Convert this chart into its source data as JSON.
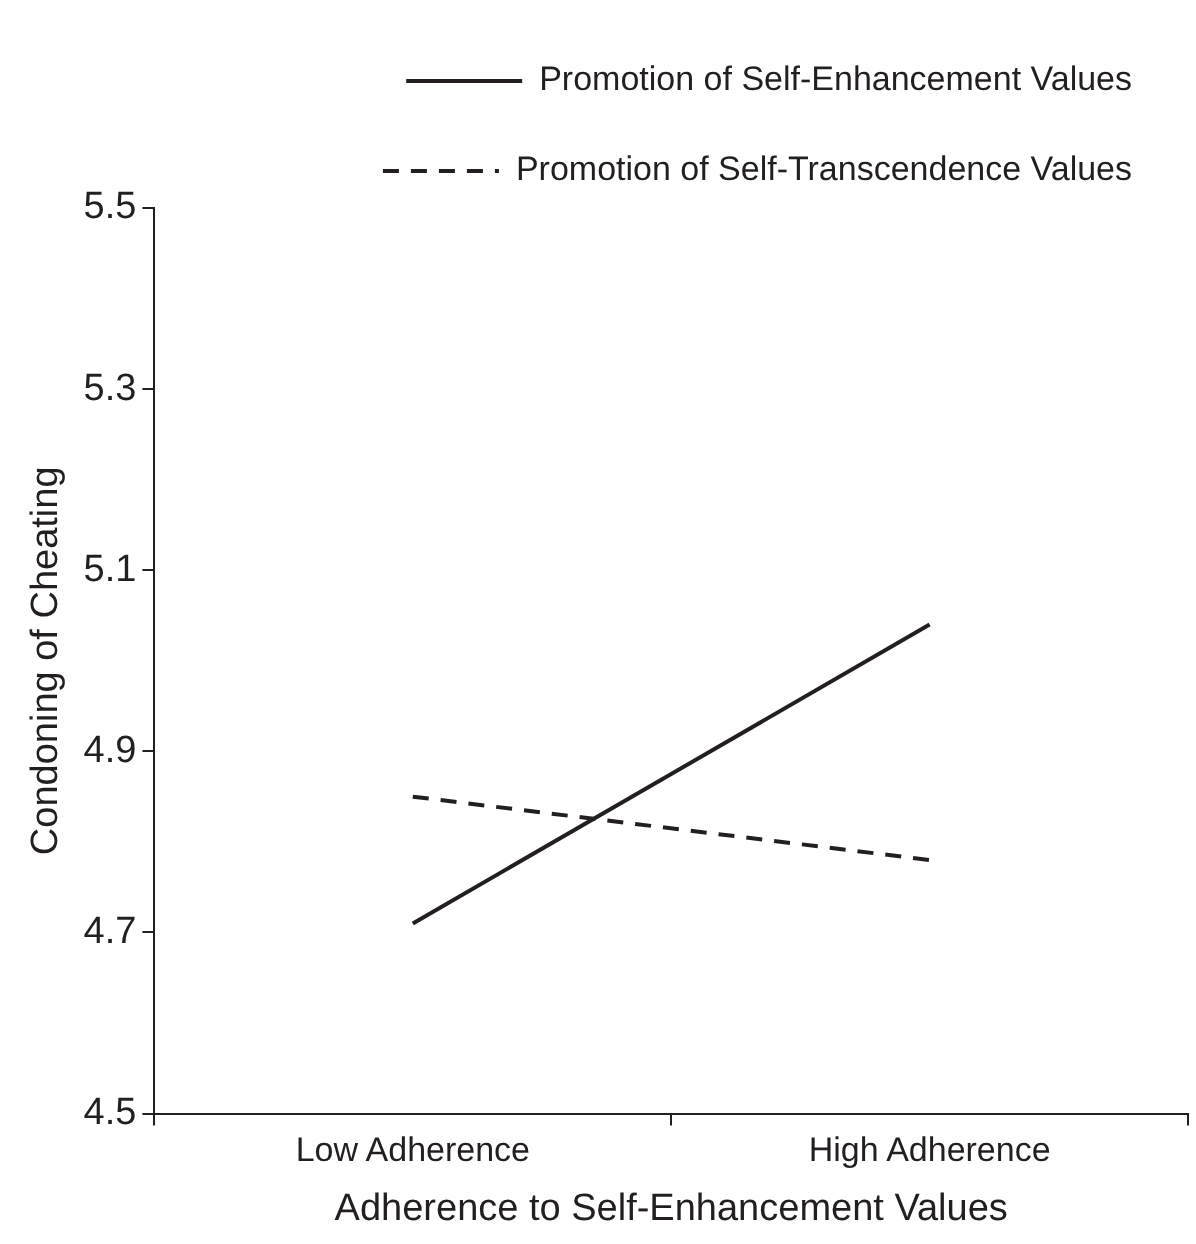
{
  "chart_data": {
    "type": "line",
    "xlabel": "Adherence to Self-Enhancement Values",
    "ylabel": "Condoning of Cheating",
    "categories": [
      "Low Adherence",
      "High Adherence"
    ],
    "series": [
      {
        "name": "Promotion of Self-Enhancement Values",
        "color": "#231f20",
        "values": [
          4.71,
          5.04
        ],
        "line_style": "solid"
      },
      {
        "name": "Promotion of Self-Transcendence Values",
        "color": "#231f20",
        "values": [
          4.85,
          4.78
        ],
        "line_style": "dashed"
      }
    ],
    "ylim": [
      4.5,
      5.5
    ],
    "yticks": [
      4.5,
      4.7,
      4.9,
      5.1,
      5.3,
      5.5
    ],
    "grid": false,
    "legend": "top right",
    "marker": "none"
  }
}
